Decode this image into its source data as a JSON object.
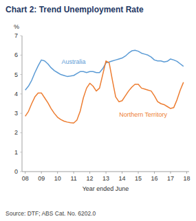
{
  "chart_data": {
    "type": "line",
    "title": "Chart 2: Trend Unemployment Rate",
    "x_label": "Year ended June",
    "y_label": "%",
    "source": "Source: DTF; ABS Cat. No. 6202.0",
    "x": [
      2008.0,
      2008.2,
      2008.4,
      2008.6,
      2008.8,
      2009.0,
      2009.2,
      2009.4,
      2009.6,
      2009.8,
      2010.0,
      2010.2,
      2010.4,
      2010.6,
      2010.8,
      2011.0,
      2011.2,
      2011.4,
      2011.6,
      2011.8,
      2012.0,
      2012.2,
      2012.4,
      2012.6,
      2012.8,
      2013.0,
      2013.2,
      2013.4,
      2013.6,
      2013.8,
      2014.0,
      2014.2,
      2014.4,
      2014.6,
      2014.8,
      2015.0,
      2015.2,
      2015.4,
      2015.6,
      2015.8,
      2016.0,
      2016.2,
      2016.4,
      2016.6,
      2016.8,
      2017.0,
      2017.2,
      2017.4,
      2017.6,
      2017.8
    ],
    "series": [
      {
        "name": "Australia",
        "color": "#5b9bd5",
        "values": [
          4.2,
          4.4,
          4.7,
          5.1,
          5.45,
          5.75,
          5.7,
          5.55,
          5.35,
          5.2,
          5.1,
          5.0,
          4.95,
          4.9,
          4.92,
          4.95,
          5.05,
          5.15,
          5.15,
          5.1,
          5.15,
          5.15,
          5.1,
          5.1,
          5.3,
          5.6,
          5.65,
          5.7,
          5.75,
          5.8,
          5.85,
          5.95,
          6.1,
          6.22,
          6.25,
          6.2,
          6.1,
          6.05,
          6.0,
          5.9,
          5.75,
          5.7,
          5.7,
          5.65,
          5.68,
          5.8,
          5.75,
          5.68,
          5.55,
          5.42
        ]
      },
      {
        "name": "Northern Territory",
        "color": "#ed7d31",
        "values": [
          2.85,
          3.1,
          3.5,
          3.85,
          4.05,
          4.05,
          3.8,
          3.55,
          3.25,
          3.0,
          2.8,
          2.68,
          2.6,
          2.55,
          2.52,
          2.5,
          2.65,
          3.1,
          3.8,
          4.3,
          4.55,
          4.4,
          4.15,
          4.3,
          5.0,
          5.7,
          5.6,
          4.7,
          3.85,
          3.6,
          3.65,
          3.9,
          4.15,
          4.35,
          4.5,
          4.5,
          4.3,
          4.25,
          4.2,
          4.15,
          3.9,
          3.6,
          3.5,
          3.45,
          3.35,
          3.25,
          3.3,
          3.7,
          4.2,
          4.6
        ]
      }
    ],
    "xlim": [
      2007.8,
      2018.15
    ],
    "xticks": [
      {
        "value": 2008,
        "label": "08"
      },
      {
        "value": 2009,
        "label": "09"
      },
      {
        "value": 2010,
        "label": "10"
      },
      {
        "value": 2011,
        "label": "11"
      },
      {
        "value": 2012,
        "label": "12"
      },
      {
        "value": 2013,
        "label": "13"
      },
      {
        "value": 2014,
        "label": "14"
      },
      {
        "value": 2015,
        "label": "15"
      },
      {
        "value": 2016,
        "label": "16"
      },
      {
        "value": 2017,
        "label": "17"
      },
      {
        "value": 2018,
        "label": "18"
      }
    ],
    "ylim": [
      0,
      7
    ],
    "yticks": [
      0,
      1,
      2,
      3,
      4,
      5,
      6,
      7
    ],
    "grid": false
  }
}
